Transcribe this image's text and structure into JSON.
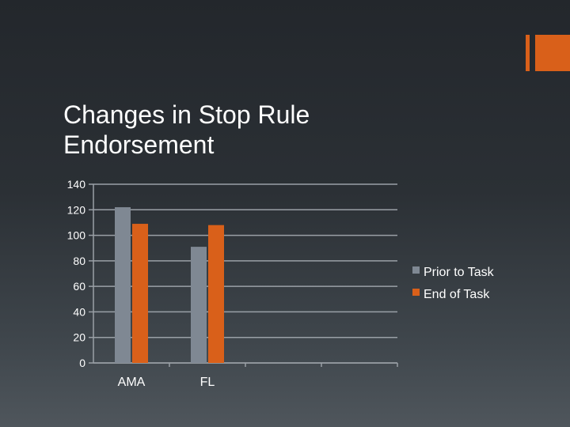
{
  "slide": {
    "title_line1": "Changes in Stop Rule",
    "title_line2": "Endorsement"
  },
  "colors": {
    "accent": "#d9601a",
    "series_prior": "#7f8893",
    "series_end": "#d9601a",
    "grid": "#9aa0a6",
    "text": "#ffffff"
  },
  "chart_data": {
    "type": "bar",
    "title": "",
    "xlabel": "",
    "ylabel": "",
    "categories": [
      "AMA",
      "FL"
    ],
    "series": [
      {
        "name": "Prior to Task",
        "values": [
          122,
          91
        ]
      },
      {
        "name": "End of Task",
        "values": [
          109,
          108
        ]
      }
    ],
    "ylim": [
      0,
      140
    ],
    "yticks": [
      "0",
      "20",
      "40",
      "60",
      "80",
      "100",
      "120",
      "140"
    ],
    "category_slots": 4,
    "grid": true,
    "legend": "right"
  }
}
